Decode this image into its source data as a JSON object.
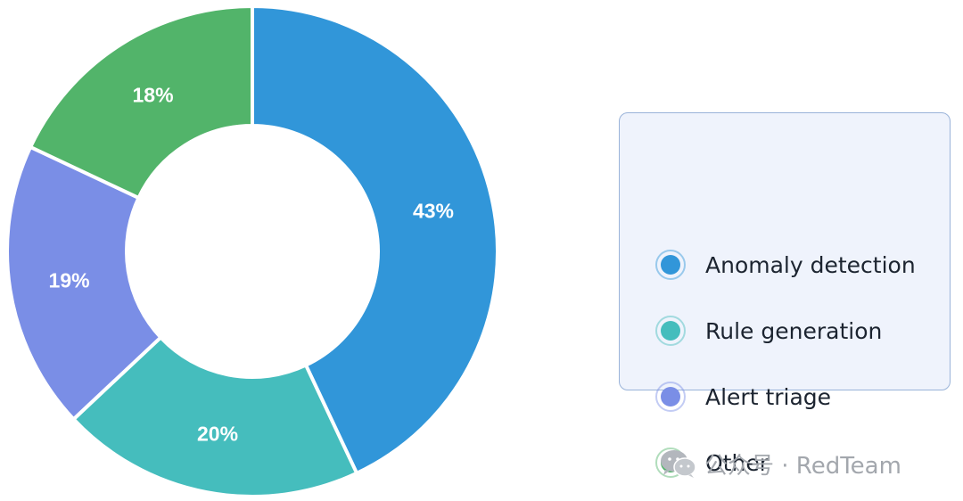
{
  "chart_data": {
    "type": "pie",
    "donut": true,
    "title": "",
    "categories": [
      "Anomaly detection",
      "Rule generation",
      "Alert triage",
      "Other"
    ],
    "values": [
      43,
      20,
      19,
      18
    ],
    "labels": [
      "43%",
      "20%",
      "19%",
      "18%"
    ],
    "colors": [
      "#3196d9",
      "#45bdbd",
      "#7a8ee6",
      "#52b46a"
    ],
    "legend_position": "right"
  },
  "legend": {
    "items": [
      {
        "label": "Anomaly detection",
        "color": "#3196d9"
      },
      {
        "label": "Rule generation",
        "color": "#45bdbd"
      },
      {
        "label": "Alert triage",
        "color": "#7a8ee6"
      },
      {
        "label": "Other",
        "color": "#52b46a"
      }
    ]
  },
  "watermark": {
    "icon": "wechat-icon",
    "text": "公众号 · RedTeam"
  }
}
